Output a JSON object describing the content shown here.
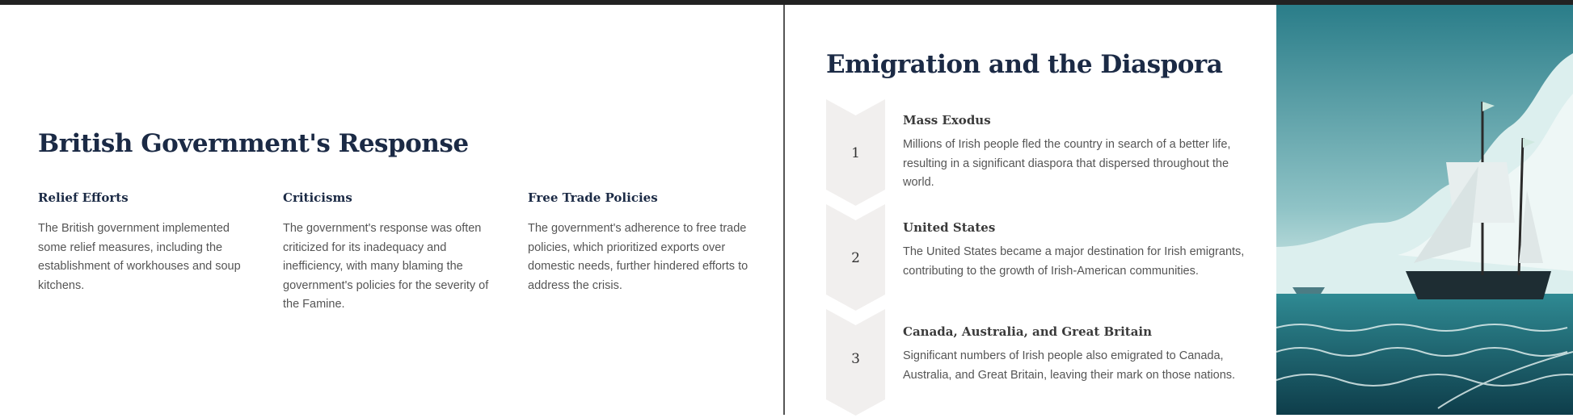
{
  "left": {
    "title": "British Government's Response",
    "columns": [
      {
        "heading": "Relief Efforts",
        "text": "The British government implemented some relief measures, including the establishment of workhouses and soup kitchens."
      },
      {
        "heading": "Criticisms",
        "text": "The government's response was often criticized for its inadequacy and inefficiency, with many blaming the government's policies for the severity of the Famine."
      },
      {
        "heading": "Free Trade Policies",
        "text": "The government's adherence to free trade policies, which prioritized exports over domestic needs, further hindered efforts to address the crisis."
      }
    ]
  },
  "right": {
    "title": "Emigration and the Diaspora",
    "steps": [
      {
        "number": "1",
        "heading": "Mass Exodus",
        "text": "Millions of Irish people fled the country in search of a better life, resulting in a significant diaspora that dispersed throughout the world."
      },
      {
        "number": "2",
        "heading": "United States",
        "text": "The United States became a major destination for Irish emigrants, contributing to the growth of Irish-American communities."
      },
      {
        "number": "3",
        "heading": "Canada, Australia, and Great Britain",
        "text": "Significant numbers of Irish people also emigrated to Canada, Australia, and Great Britain, leaving their mark on those nations."
      }
    ],
    "image": {
      "subject": "sailing-ship-at-sea-illustration"
    }
  },
  "colors": {
    "heading": "#1b2a45",
    "body": "#555555",
    "chevron": "#f1efee",
    "sea": "#1f6b78"
  }
}
